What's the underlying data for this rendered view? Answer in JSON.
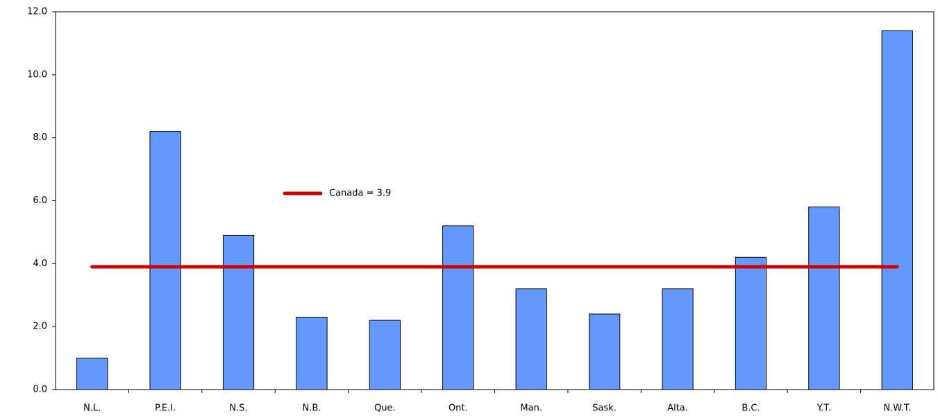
{
  "chart_data": {
    "type": "bar",
    "categories": [
      "N.L.",
      "P.E.I.",
      "N.S.",
      "N.B.",
      "Que.",
      "Ont.",
      "Man.",
      "Sask.",
      "Alta.",
      "B.C.",
      "Y.T.",
      "N.W.T."
    ],
    "values": [
      1.0,
      8.2,
      4.9,
      2.3,
      2.2,
      5.2,
      3.2,
      2.4,
      3.2,
      4.2,
      5.8,
      11.4
    ],
    "color": "#6699ff",
    "ylim": [
      0,
      12
    ],
    "yticks": [
      {
        "value": 0,
        "label": "0.0"
      },
      {
        "value": 2,
        "label": "2.0"
      },
      {
        "value": 4,
        "label": "4.0"
      },
      {
        "value": 6,
        "label": "6.0"
      },
      {
        "value": 8,
        "label": "8.0"
      },
      {
        "value": 10,
        "label": "10.0"
      },
      {
        "value": 12,
        "label": "12.0"
      }
    ],
    "reference_line": {
      "value": 3.9,
      "label": "Canada = 3.9",
      "color": "#cc0000"
    }
  }
}
